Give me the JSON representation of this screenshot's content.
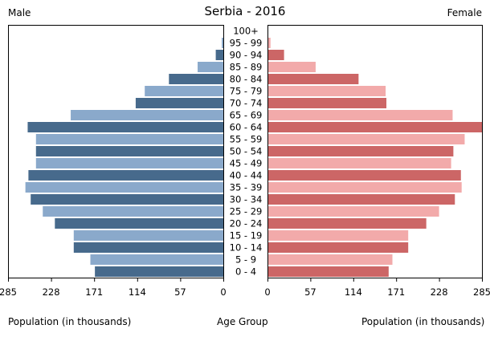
{
  "chart_data": {
    "type": "bar",
    "title": "Serbia - 2016",
    "left_label": "Male",
    "right_label": "Female",
    "xlabel_left": "Population (in thousands)",
    "xlabel_center": "Age Group",
    "xlabel_right": "Population (in thousands)",
    "categories": [
      "0 - 4",
      "5 - 9",
      "10 - 14",
      "15 - 19",
      "20 - 24",
      "25 - 29",
      "30 - 34",
      "35 - 39",
      "40 - 44",
      "45 - 49",
      "50 - 54",
      "55 - 59",
      "60 - 64",
      "65 - 69",
      "70 - 74",
      "75 - 79",
      "80 - 84",
      "85 - 89",
      "90 - 94",
      "95 - 99",
      "100+"
    ],
    "series": [
      {
        "name": "Male",
        "values": [
          170,
          176,
          198,
          198,
          223,
          239,
          255,
          262,
          258,
          248,
          248,
          248,
          259,
          202,
          116,
          104,
          72,
          34,
          10,
          2,
          0
        ],
        "colors": [
          "#476a8c",
          "#8aa9cb"
        ]
      },
      {
        "name": "Female",
        "values": [
          161,
          166,
          187,
          187,
          211,
          228,
          249,
          258,
          257,
          244,
          247,
          262,
          285,
          246,
          158,
          157,
          121,
          64,
          22,
          4,
          0
        ],
        "colors": [
          "#cc6666",
          "#f2aaaa"
        ]
      }
    ],
    "xticks": [
      285,
      228,
      171,
      114,
      57,
      0
    ],
    "xlim": [
      0,
      285
    ]
  }
}
